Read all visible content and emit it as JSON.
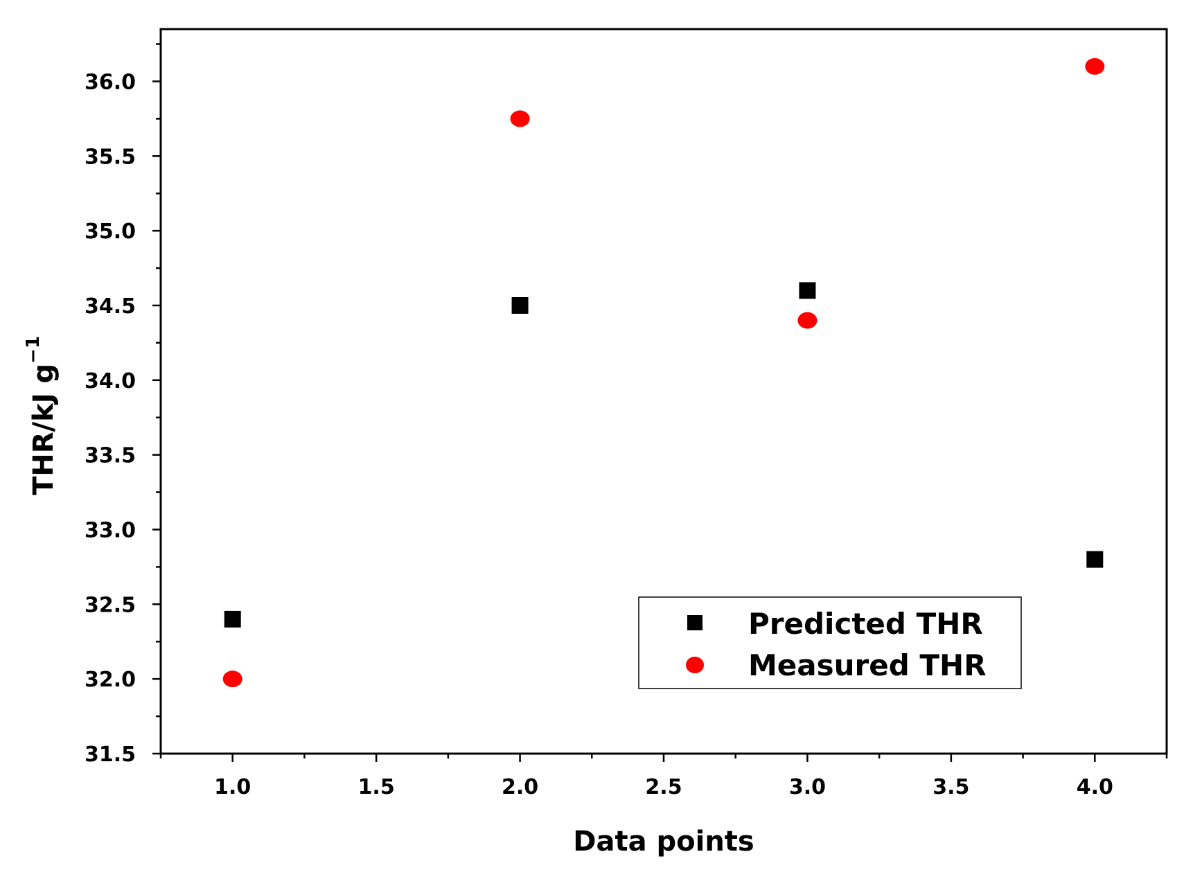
{
  "chart_data": {
    "type": "scatter",
    "xlabel": "Data points",
    "ylabel": "THR/kJ g",
    "ylabel_superscript": "−1",
    "xlim": [
      0.75,
      4.25
    ],
    "ylim": [
      31.5,
      36.35
    ],
    "x_ticks": [
      1.0,
      1.5,
      2.0,
      2.5,
      3.0,
      3.5,
      4.0
    ],
    "x_tick_labels": [
      "1.0",
      "1.5",
      "2.0",
      "2.5",
      "3.0",
      "3.5",
      "4.0"
    ],
    "y_ticks": [
      31.5,
      32.0,
      32.5,
      33.0,
      33.5,
      34.0,
      34.5,
      35.0,
      35.5,
      36.0
    ],
    "y_tick_labels": [
      "31.5",
      "32.0",
      "32.5",
      "33.0",
      "33.5",
      "34.0",
      "34.5",
      "35.0",
      "35.5",
      "36.0"
    ],
    "grid": false,
    "legend_position": "bottom-right",
    "series": [
      {
        "name": "Predicted THR",
        "marker": "square",
        "color": "#000000",
        "x": [
          1,
          2,
          3,
          4
        ],
        "y": [
          32.4,
          34.5,
          34.6,
          32.8
        ]
      },
      {
        "name": "Measured THR",
        "marker": "circle",
        "color": "#ff0000",
        "x": [
          1,
          2,
          3,
          4
        ],
        "y": [
          32.0,
          35.75,
          34.4,
          36.1
        ]
      }
    ]
  }
}
